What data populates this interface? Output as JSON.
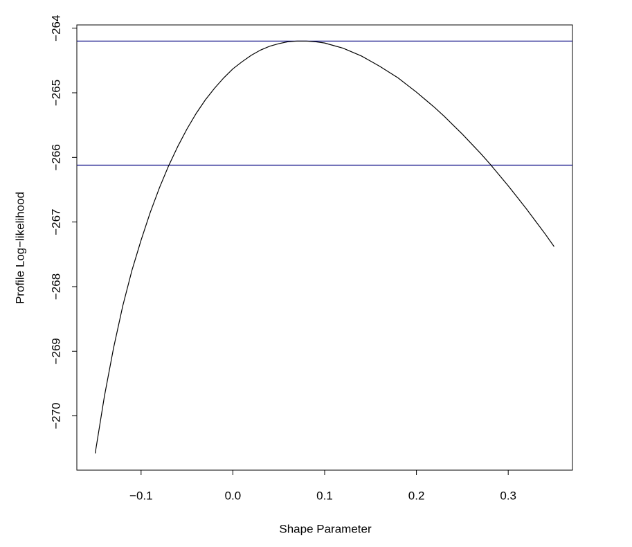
{
  "chart_data": {
    "type": "line",
    "x_label": "Shape Parameter",
    "y_label": "Profile Log−likelihood",
    "x": [
      -0.15,
      -0.14,
      -0.13,
      -0.12,
      -0.11,
      -0.1,
      -0.09,
      -0.08,
      -0.07,
      -0.06,
      -0.05,
      -0.04,
      -0.03,
      -0.02,
      -0.01,
      0.0,
      0.01,
      0.02,
      0.03,
      0.04,
      0.05,
      0.06,
      0.07,
      0.08,
      0.09,
      0.1,
      0.11,
      0.12,
      0.13,
      0.14,
      0.15,
      0.16,
      0.17,
      0.18,
      0.19,
      0.2,
      0.21,
      0.22,
      0.23,
      0.24,
      0.25,
      0.26,
      0.27,
      0.28,
      0.29,
      0.3,
      0.31,
      0.32,
      0.33,
      0.34,
      0.35
    ],
    "series": [
      {
        "color": "#000000",
        "values": [
          -270.58,
          -269.7,
          -268.95,
          -268.3,
          -267.75,
          -267.28,
          -266.85,
          -266.47,
          -266.13,
          -265.83,
          -265.56,
          -265.32,
          -265.11,
          -264.93,
          -264.77,
          -264.63,
          -264.52,
          -264.42,
          -264.34,
          -264.28,
          -264.24,
          -264.21,
          -264.2,
          -264.2,
          -264.21,
          -264.23,
          -264.27,
          -264.31,
          -264.37,
          -264.43,
          -264.51,
          -264.59,
          -264.68,
          -264.77,
          -264.88,
          -264.99,
          -265.11,
          -265.23,
          -265.36,
          -265.5,
          -265.64,
          -265.79,
          -265.94,
          -266.1,
          -266.27,
          -266.44,
          -266.62,
          -266.8,
          -266.99,
          -267.18,
          -267.38
        ]
      }
    ],
    "hlines": [
      {
        "value": -264.2,
        "color": "#000080"
      },
      {
        "value": -266.12,
        "color": "#000080"
      }
    ],
    "xlim": [
      -0.17,
      0.37
    ],
    "ylim": [
      -270.84,
      -263.95
    ],
    "xticks": [
      {
        "value": -0.1,
        "label": "−0.1"
      },
      {
        "value": 0.0,
        "label": "0.0"
      },
      {
        "value": 0.1,
        "label": "0.1"
      },
      {
        "value": 0.2,
        "label": "0.2"
      },
      {
        "value": 0.3,
        "label": "0.3"
      }
    ],
    "yticks": [
      {
        "value": -270,
        "label": "−270"
      },
      {
        "value": -269,
        "label": "−269"
      },
      {
        "value": -268,
        "label": "−268"
      },
      {
        "value": -267,
        "label": "−267"
      },
      {
        "value": -266,
        "label": "−266"
      },
      {
        "value": -265,
        "label": "−265"
      },
      {
        "value": -264,
        "label": "−264"
      }
    ]
  }
}
